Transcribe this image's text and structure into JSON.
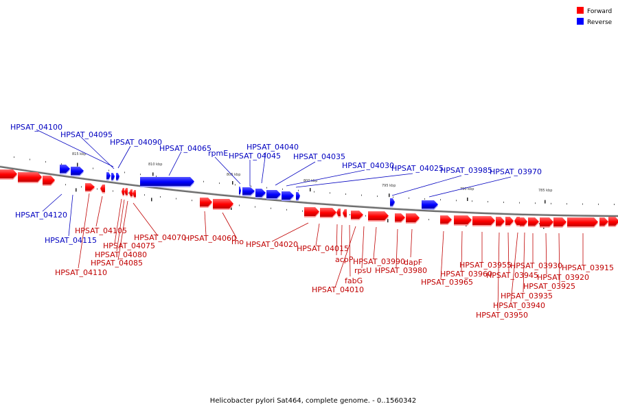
{
  "legend": [
    {
      "name": "Forward",
      "color": "#ff0000"
    },
    {
      "name": "Reverse",
      "color": "#0000ff"
    }
  ],
  "caption": "Helicobacter pylori Sat464, complete genome. - 0..1560342",
  "colors": {
    "forward": "#ff0000",
    "reverse": "#0000ff",
    "forward_label": "#c00000",
    "reverse_label": "#0000c0",
    "backbone": "#888888"
  },
  "ruler": [
    "815 kbp",
    "810 kbp",
    "805 kbp",
    "800 kbp",
    "795 kbp",
    "790 kbp",
    "785 kbp"
  ],
  "reverse_labels": [
    "HPSAT_04100",
    "HPSAT_04095",
    "HPSAT_04090",
    "HPSAT_04065",
    "rpmE",
    "HPSAT_04045",
    "HPSAT_04040",
    "HPSAT_04035",
    "HPSAT_04030",
    "HPSAT_04025",
    "HPSAT_03985",
    "HPSAT_03970",
    "HPSAT_04120",
    "HPSAT_04115"
  ],
  "forward_labels": [
    "HPSAT_04105",
    "HPSAT_04070",
    "HPSAT_04075",
    "HPSAT_04080",
    "HPSAT_04085",
    "HPSAT_04110",
    "HPSAT_04060",
    "rho",
    "HPSAT_04020",
    "HPSAT_04015",
    "acpP",
    "fabG",
    "HPSAT_04010",
    "rpsU",
    "HPSAT_03990",
    "HPSAT_03980",
    "dapF",
    "HPSAT_03955",
    "HPSAT_03960",
    "HPSAT_03965",
    "HPSAT_03930",
    "HPSAT_03945",
    "HPSAT_03935",
    "HPSAT_03940",
    "HPSAT_03950",
    "HPSAT_03915",
    "HPSAT_03920",
    "HPSAT_03925"
  ]
}
